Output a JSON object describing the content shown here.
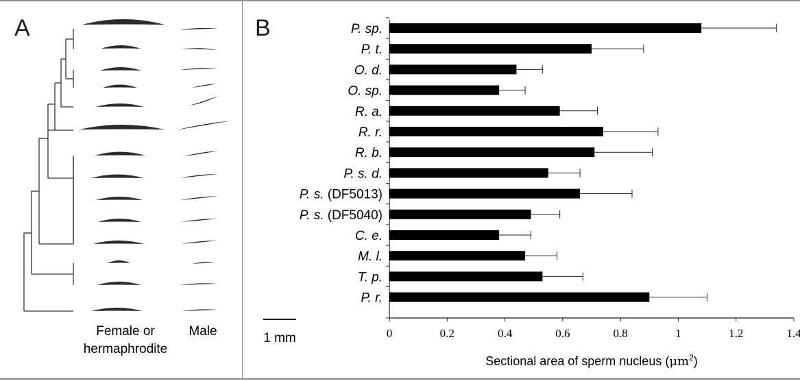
{
  "panel_a": {
    "label": "A",
    "col_female": [
      "Female or",
      "hermaphrodite"
    ],
    "col_male": "Male",
    "scale_bar": "1 mm"
  },
  "panel_b": {
    "label": "B"
  },
  "chart_data": {
    "type": "bar",
    "orientation": "horizontal",
    "title": "",
    "xlabel": "Sectional area of sperm nucleus (μm²)",
    "xlabel_parts": {
      "main": "Sectional area of sperm nucleus (",
      "unit": "μm",
      "sup": "2",
      "close": ")"
    },
    "ylabel": "",
    "xlim": [
      0,
      1.4
    ],
    "xticks": [
      "0",
      "0.2",
      "0.4",
      "0.6",
      "0.8",
      "1",
      "1.2",
      "1.4"
    ],
    "categories": [
      {
        "name": "P. sp.",
        "suffix": ""
      },
      {
        "name": "P. t.",
        "suffix": ""
      },
      {
        "name": "O. d.",
        "suffix": ""
      },
      {
        "name": "O. sp.",
        "suffix": ""
      },
      {
        "name": "R. a.",
        "suffix": ""
      },
      {
        "name": "R. r.",
        "suffix": ""
      },
      {
        "name": "R. b.",
        "suffix": ""
      },
      {
        "name": "P. s. d.",
        "suffix": ""
      },
      {
        "name": "P. s.",
        "suffix": " (DF5013)"
      },
      {
        "name": "P. s.",
        "suffix": " (DF5040)"
      },
      {
        "name": "C. e.",
        "suffix": ""
      },
      {
        "name": "M. l.",
        "suffix": ""
      },
      {
        "name": "T. p.",
        "suffix": ""
      },
      {
        "name": "P. r.",
        "suffix": ""
      }
    ],
    "values": [
      1.08,
      0.7,
      0.44,
      0.38,
      0.59,
      0.74,
      0.71,
      0.55,
      0.66,
      0.49,
      0.38,
      0.47,
      0.53,
      0.9
    ],
    "error": [
      0.26,
      0.18,
      0.09,
      0.09,
      0.13,
      0.19,
      0.2,
      0.11,
      0.18,
      0.1,
      0.11,
      0.11,
      0.14,
      0.2
    ],
    "grid": false,
    "bar_color": "#000000"
  }
}
